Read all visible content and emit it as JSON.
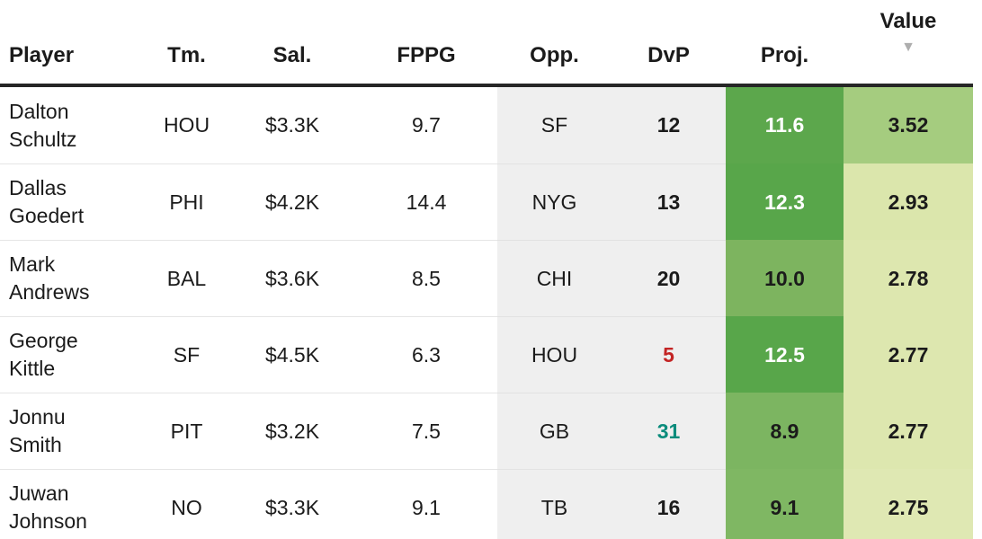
{
  "table": {
    "columns": [
      {
        "label": "Player"
      },
      {
        "label": "Tm."
      },
      {
        "label": "Sal."
      },
      {
        "label": "FPPG"
      },
      {
        "label": "Opp."
      },
      {
        "label": "DvP"
      },
      {
        "label": "Proj."
      },
      {
        "label": "Value",
        "sort": "desc"
      }
    ],
    "sort_desc_icon": "▼",
    "rows": [
      {
        "player": "Dalton Schultz",
        "tm": "HOU",
        "sal": "$3.3K",
        "fppg": "9.7",
        "opp": "SF",
        "dvp": "12",
        "dvp_fg": "#1b1b1b",
        "proj": "11.6",
        "proj_bg": "#5ca74c",
        "proj_fg": "#ffffff",
        "value": "3.52",
        "value_bg": "#a5cc7f"
      },
      {
        "player": "Dallas Goedert",
        "tm": "PHI",
        "sal": "$4.2K",
        "fppg": "14.4",
        "opp": "NYG",
        "dvp": "13",
        "dvp_fg": "#1b1b1b",
        "proj": "12.3",
        "proj_bg": "#58a64a",
        "proj_fg": "#ffffff",
        "value": "2.93",
        "value_bg": "#dbe6ac"
      },
      {
        "player": "Mark Andrews",
        "tm": "BAL",
        "sal": "$3.6K",
        "fppg": "8.5",
        "opp": "CHI",
        "dvp": "20",
        "dvp_fg": "#1b1b1b",
        "proj": "10.0",
        "proj_bg": "#7db45f",
        "proj_fg": "#1b1b1b",
        "value": "2.78",
        "value_bg": "#dde7af"
      },
      {
        "player": "George Kittle",
        "tm": "SF",
        "sal": "$4.5K",
        "fppg": "6.3",
        "opp": "HOU",
        "dvp": "5",
        "dvp_fg": "#c32424",
        "proj": "12.5",
        "proj_bg": "#58a64a",
        "proj_fg": "#ffffff",
        "value": "2.77",
        "value_bg": "#dde7af"
      },
      {
        "player": "Jonnu Smith",
        "tm": "PIT",
        "sal": "$3.2K",
        "fppg": "7.5",
        "opp": "GB",
        "dvp": "31",
        "dvp_fg": "#0b8c7c",
        "proj": "8.9",
        "proj_bg": "#7cb561",
        "proj_fg": "#1b1b1b",
        "value": "2.77",
        "value_bg": "#dde7af"
      },
      {
        "player": "Juwan Johnson",
        "tm": "NO",
        "sal": "$3.3K",
        "fppg": "9.1",
        "opp": "TB",
        "dvp": "16",
        "dvp_fg": "#1b1b1b",
        "proj": "9.1",
        "proj_bg": "#7fb763",
        "proj_fg": "#1b1b1b",
        "value": "2.75",
        "value_bg": "#dfe8b3"
      }
    ]
  }
}
